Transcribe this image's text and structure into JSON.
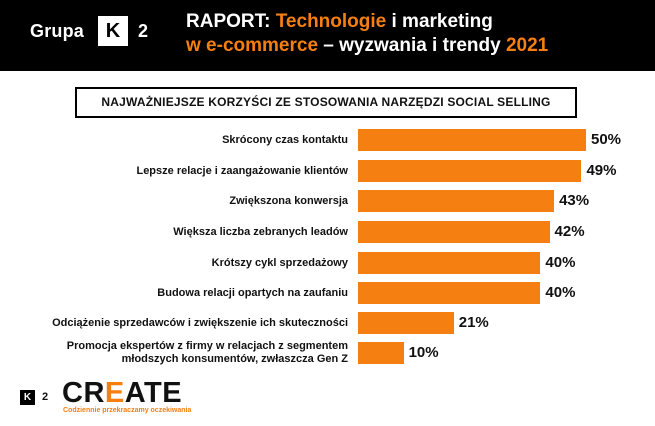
{
  "header": {
    "brand_word": "Grupa",
    "brand_letter": "K",
    "brand_number": "2",
    "title_part1": "RAPORT: ",
    "title_part2": "Technologie",
    "title_part3": " i marketing",
    "title_part4": "w e-commerce",
    "title_part5": " – wyzwania i trendy ",
    "title_part6": "2021"
  },
  "chart_data": {
    "type": "bar",
    "orientation": "horizontal",
    "title": "NAJWAŻNIEJSZE KORZYŚCI ZE STOSOWANIA NARZĘDZI SOCIAL SELLING",
    "categories": [
      "Skrócony czas kontaktu",
      "Lepsze relacje i zaangażowanie klientów",
      "Zwiększona konwersja",
      "Większa liczba zebranych leadów",
      "Krótszy cykl sprzedażowy",
      "Budowa relacji opartych na zaufaniu",
      "Odciążenie sprzedawców i zwiększenie ich skuteczności",
      "Promocja ekspertów z firmy w relacjach z segmentem\nmłodszych konsumentów, zwłaszcza Gen Z"
    ],
    "values": [
      50,
      49,
      43,
      42,
      40,
      40,
      21,
      10
    ],
    "value_labels": [
      "50%",
      "49%",
      "43%",
      "42%",
      "40%",
      "40%",
      "21%",
      "10%"
    ],
    "unit": "%",
    "bar_color": "#f57f11"
  },
  "footer": {
    "k_letter": "K",
    "k_number": "2",
    "logo_part1": "CR",
    "logo_part2": "E",
    "logo_part3": "ATE",
    "tagline": "Codziennie przekraczamy oczekiwania"
  }
}
